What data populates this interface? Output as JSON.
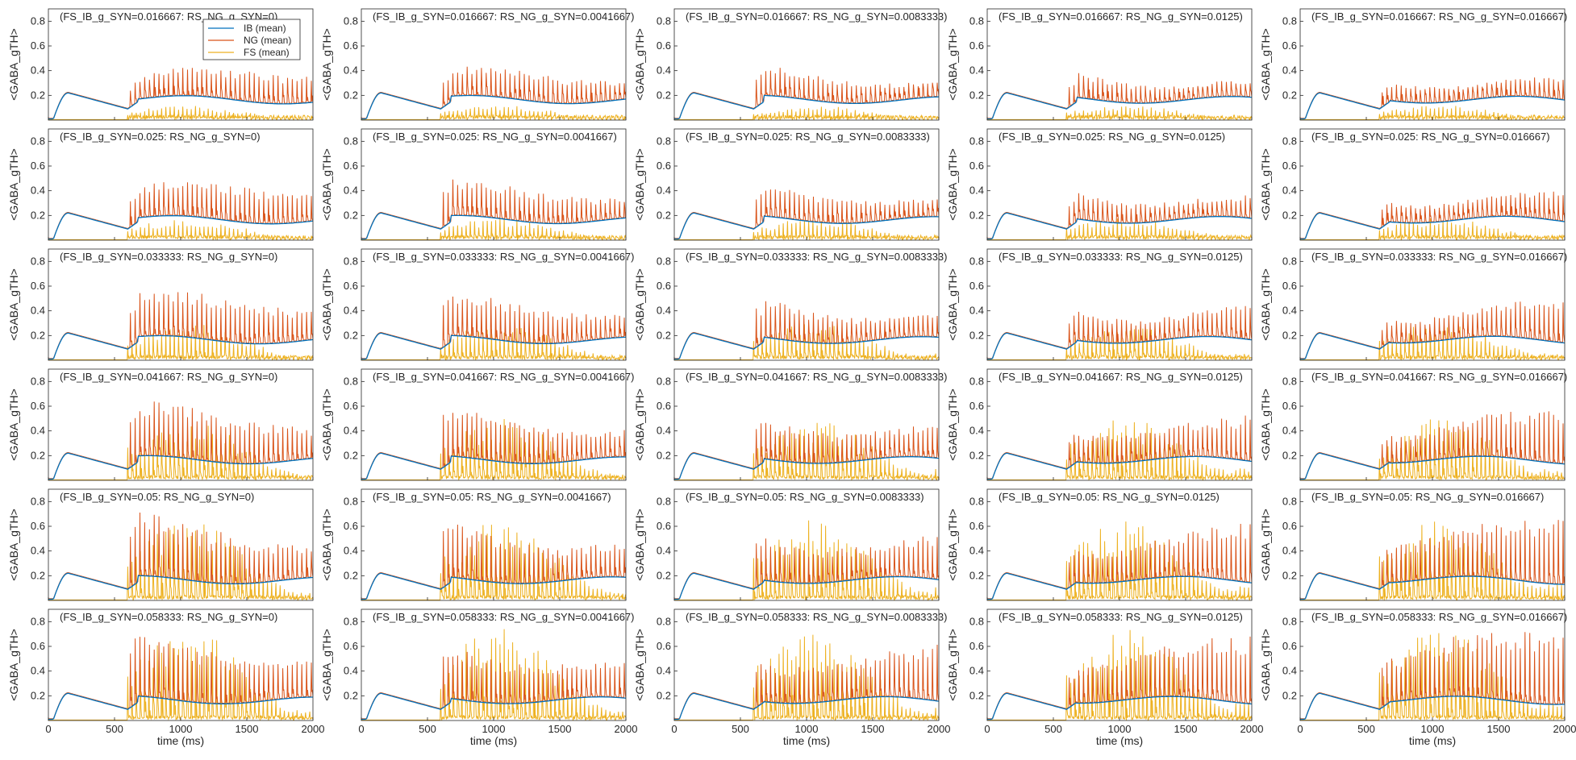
{
  "chart_data": {
    "type": "line",
    "layout": "grid 6x5 small multiples",
    "row_params": {
      "name": "FS_IB_g_SYN",
      "values": [
        "0.016667",
        "0.025",
        "0.033333",
        "0.041667",
        "0.05",
        "0.058333"
      ]
    },
    "col_params": {
      "name": "RS_NG_g_SYN",
      "values": [
        "0",
        "0.0041667",
        "0.0083333",
        "0.0125",
        "0.016667"
      ]
    },
    "panel_titles": [
      [
        "(FS_IB_g_SYN=0.016667: RS_NG_g_SYN=0)",
        "(FS_IB_g_SYN=0.016667: RS_NG_g_SYN=0.0041667)",
        "(FS_IB_g_SYN=0.016667: RS_NG_g_SYN=0.0083333)",
        "(FS_IB_g_SYN=0.016667: RS_NG_g_SYN=0.0125)",
        "(FS_IB_g_SYN=0.016667: RS_NG_g_SYN=0.016667)"
      ],
      [
        "(FS_IB_g_SYN=0.025: RS_NG_g_SYN=0)",
        "(FS_IB_g_SYN=0.025: RS_NG_g_SYN=0.0041667)",
        "(FS_IB_g_SYN=0.025: RS_NG_g_SYN=0.0083333)",
        "(FS_IB_g_SYN=0.025: RS_NG_g_SYN=0.0125)",
        "(FS_IB_g_SYN=0.025: RS_NG_g_SYN=0.016667)"
      ],
      [
        "(FS_IB_g_SYN=0.033333: RS_NG_g_SYN=0)",
        "(FS_IB_g_SYN=0.033333: RS_NG_g_SYN=0.0041667)",
        "(FS_IB_g_SYN=0.033333: RS_NG_g_SYN=0.0083333)",
        "(FS_IB_g_SYN=0.033333: RS_NG_g_SYN=0.0125)",
        "(FS_IB_g_SYN=0.033333: RS_NG_g_SYN=0.016667)"
      ],
      [
        "(FS_IB_g_SYN=0.041667: RS_NG_g_SYN=0)",
        "(FS_IB_g_SYN=0.041667: RS_NG_g_SYN=0.0041667)",
        "(FS_IB_g_SYN=0.041667: RS_NG_g_SYN=0.0083333)",
        "(FS_IB_g_SYN=0.041667: RS_NG_g_SYN=0.0125)",
        "(FS_IB_g_SYN=0.041667: RS_NG_g_SYN=0.016667)"
      ],
      [
        "(FS_IB_g_SYN=0.05: RS_NG_g_SYN=0)",
        "(FS_IB_g_SYN=0.05: RS_NG_g_SYN=0.0041667)",
        "(FS_IB_g_SYN=0.05: RS_NG_g_SYN=0.0083333)",
        "(FS_IB_g_SYN=0.05: RS_NG_g_SYN=0.0125)",
        "(FS_IB_g_SYN=0.05: RS_NG_g_SYN=0.016667)"
      ],
      [
        "(FS_IB_g_SYN=0.058333: RS_NG_g_SYN=0)",
        "(FS_IB_g_SYN=0.058333: RS_NG_g_SYN=0.0041667)",
        "(FS_IB_g_SYN=0.058333: RS_NG_g_SYN=0.0083333)",
        "(FS_IB_g_SYN=0.058333: RS_NG_g_SYN=0.0125)",
        "(FS_IB_g_SYN=0.058333: RS_NG_g_SYN=0.016667)"
      ]
    ],
    "ylabel": "<GABA_gTH>",
    "xlabel": "time (ms)",
    "xlim": [
      0,
      2000
    ],
    "ylim": [
      0,
      0.9
    ],
    "xticks": [
      0,
      500,
      1000,
      1500,
      2000
    ],
    "yticks": [
      0.2,
      0.4,
      0.6,
      0.8
    ],
    "xtick_labels": [
      "0",
      "500",
      "1000",
      "1500",
      "2000"
    ],
    "ytick_labels": [
      "0.2",
      "0.4",
      "0.6",
      "0.8"
    ],
    "legend": {
      "entries": [
        "IB (mean)",
        "NG (mean)",
        "FS (mean)"
      ],
      "location": "top-right of first panel"
    },
    "series": [
      {
        "name": "IB (mean)",
        "color": "#0072BD",
        "description": "slow envelope: rise to ~0.21 by 150 ms, linear decay to ~0.09 at 600 ms, then ~0.12-0.22 with slow oscillation"
      },
      {
        "name": "NG (mean)",
        "color": "#D95319",
        "description": "follows IB until 600 ms, then fast spikes with peaks ~0.3-0.45 (row 1) increasing to ~0.6-0.75 (row 6)"
      },
      {
        "name": "FS (mean)",
        "color": "#EDB120",
        "description": "near 0 until 600 ms, then dense bursts; amplitude grows with FS_IB_g_SYN, filling up to ~0.75 in bottom rows"
      }
    ],
    "peak_amplitude_by_row": {
      "NG": [
        0.42,
        0.47,
        0.55,
        0.62,
        0.7,
        0.75
      ],
      "FS": [
        0.12,
        0.18,
        0.3,
        0.5,
        0.65,
        0.75
      ]
    },
    "burst_end_ms_by_col": [
      2000,
      2000,
      1950,
      1850,
      1800
    ]
  },
  "colors": {
    "ib": "#0072BD",
    "ng": "#D95319",
    "fs": "#EDB120",
    "axis": "#262626"
  }
}
